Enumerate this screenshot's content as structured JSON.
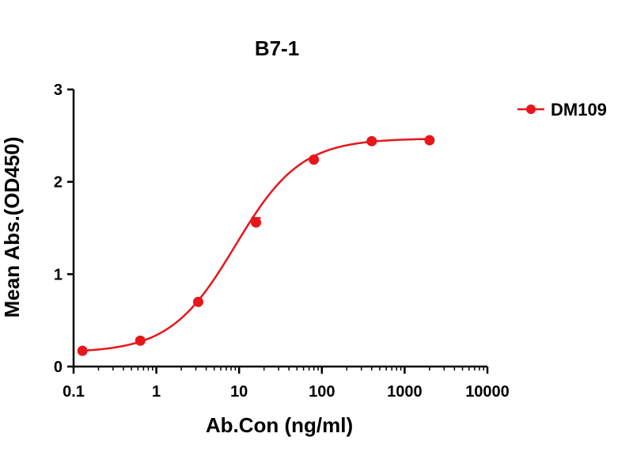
{
  "chart_data": {
    "type": "scatter",
    "title": "B7-1",
    "xlabel": "Ab.Con (ng/ml)",
    "ylabel": "Mean Abs.(OD450)",
    "xscale": "log",
    "xlim": [
      0.1,
      10000
    ],
    "ylim": [
      0,
      3
    ],
    "xticks": [
      0.1,
      1,
      10,
      100,
      1000,
      10000
    ],
    "xtick_labels": [
      "0.1",
      "1",
      "10",
      "100",
      "1000",
      "10000"
    ],
    "yticks": [
      0,
      1,
      2,
      3
    ],
    "ytick_labels": [
      "0",
      "1",
      "2",
      "3"
    ],
    "grid": false,
    "legend_position": "top-right",
    "series": [
      {
        "name": "DM109",
        "color": "#e8151b",
        "marker": "circle",
        "x": [
          0.128,
          0.64,
          3.2,
          16,
          80,
          400,
          2000
        ],
        "y": [
          0.17,
          0.28,
          0.7,
          1.56,
          2.24,
          2.44,
          2.45
        ],
        "error": [
          0,
          0,
          0,
          0.05,
          0,
          0,
          0
        ],
        "fit": {
          "model": "4PL",
          "bottom": 0.15,
          "top": 2.47,
          "ec50": 9,
          "hill": 1.1
        }
      }
    ]
  }
}
